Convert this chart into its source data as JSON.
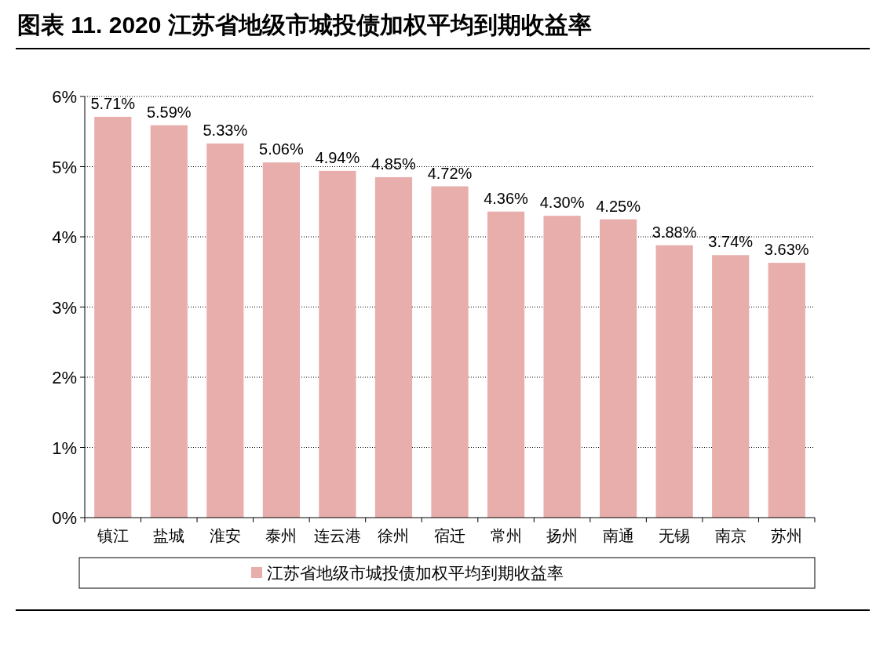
{
  "chart_data": {
    "type": "bar",
    "title": "图表 11. 2020 江苏省地级市城投债加权平均到期收益率",
    "categories": [
      "镇江",
      "盐城",
      "淮安",
      "泰州",
      "连云港",
      "徐州",
      "宿迁",
      "常州",
      "扬州",
      "南通",
      "无锡",
      "南京",
      "苏州"
    ],
    "series": [
      {
        "name": "江苏省地级市城投债加权平均到期收益率",
        "color": "#e8aeab",
        "values": [
          5.71,
          5.59,
          5.33,
          5.06,
          4.94,
          4.85,
          4.72,
          4.36,
          4.3,
          4.25,
          3.88,
          3.74,
          3.63
        ],
        "value_labels": [
          "5.71%",
          "5.59%",
          "5.33%",
          "5.06%",
          "4.94%",
          "4.85%",
          "4.72%",
          "4.36%",
          "4.30%",
          "4.25%",
          "3.88%",
          "3.74%",
          "3.63%"
        ]
      }
    ],
    "ylim": [
      0,
      6
    ],
    "yticks": [
      {
        "value": 0,
        "label": "0%"
      },
      {
        "value": 1,
        "label": "1%"
      },
      {
        "value": 2,
        "label": "2%"
      },
      {
        "value": 3,
        "label": "3%"
      },
      {
        "value": 4,
        "label": "4%"
      },
      {
        "value": 5,
        "label": "5%"
      },
      {
        "value": 6,
        "label": "6%"
      }
    ],
    "grid": "y",
    "legend": "bottom"
  }
}
